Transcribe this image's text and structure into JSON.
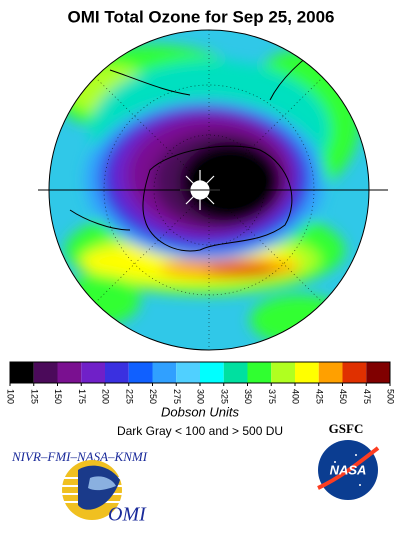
{
  "header": {
    "title": "OMI Total Ozone for Sep 25, 2006"
  },
  "colorbar": {
    "ticks": [
      100,
      125,
      150,
      175,
      200,
      225,
      250,
      275,
      300,
      325,
      350,
      375,
      400,
      425,
      450,
      475,
      500
    ],
    "colors": [
      "#000000",
      "#4b0a5a",
      "#7a1090",
      "#7020c8",
      "#3a30e0",
      "#1060ff",
      "#30a0ff",
      "#50d0ff",
      "#00ffff",
      "#00e0a0",
      "#30ff30",
      "#b0ff20",
      "#ffff00",
      "#ffa000",
      "#e03000",
      "#800000"
    ],
    "label": "Dobson Units",
    "note": "Dark Gray < 100 and > 500 DU"
  },
  "logos": {
    "partners": "NIVR–FMI–NASA–KNMI",
    "gsfc": "GSFC",
    "nasa": "NASA",
    "omi": "OMI"
  }
}
